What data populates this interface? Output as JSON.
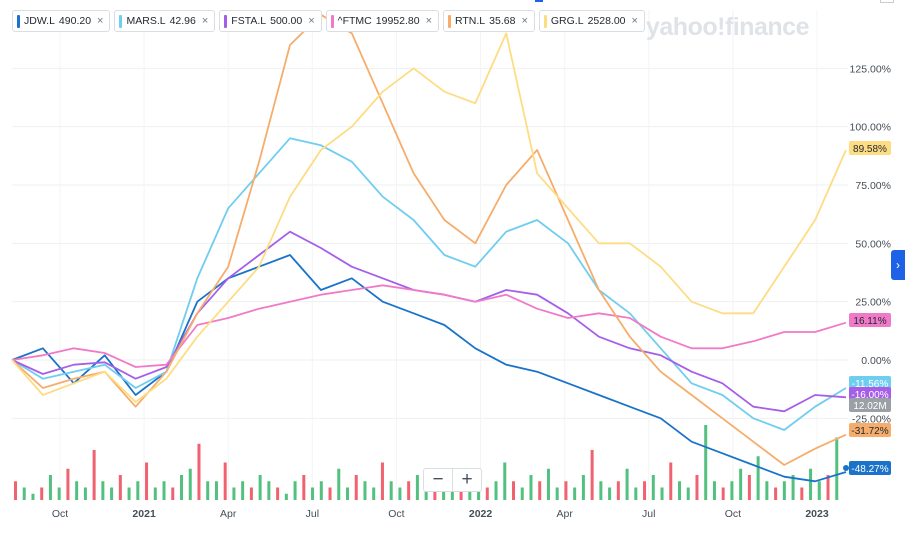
{
  "legend": [
    {
      "symbol": "JDW.L",
      "value": "490.20",
      "color": "#1a73c9"
    },
    {
      "symbol": "MARS.L",
      "value": "42.96",
      "color": "#6fcdf0"
    },
    {
      "symbol": "FSTA.L",
      "value": "500.00",
      "color": "#a65ee8"
    },
    {
      "symbol": "^FTMC",
      "value": "19952.80",
      "color": "#f07ac8"
    },
    {
      "symbol": "RTN.L",
      "value": "35.68",
      "color": "#f6ad6b"
    },
    {
      "symbol": "GRG.L",
      "value": "2528.00",
      "color": "#fddc82"
    }
  ],
  "watermark": "yahoo!finance",
  "zoom": {
    "minus": "−",
    "plus": "+"
  },
  "side_tab_icon": "chevron-right-icon",
  "chart_data": {
    "type": "line",
    "x_ticks": [
      "Oct",
      "2021",
      "Apr",
      "Jul",
      "Oct",
      "2022",
      "Apr",
      "Jul",
      "Oct",
      "2023"
    ],
    "y_ticks": [
      "125.00%",
      "100.00%",
      "75.00%",
      "50.00%",
      "25.00%",
      "0.00%",
      "-25.00%"
    ],
    "ylim": [
      -60,
      150
    ],
    "grid": true,
    "last_values": [
      {
        "label": "89.58%",
        "series": "GRG.L"
      },
      {
        "label": "16.11%",
        "series": "^FTMC"
      },
      {
        "label": "-11.56%",
        "series": "MARS.L"
      },
      {
        "label": "-16.00%",
        "series": "FSTA.L"
      },
      {
        "label": "12.02M",
        "series": "volume"
      },
      {
        "label": "-31.72%",
        "series": "RTN.L"
      },
      {
        "label": "-48.27%",
        "series": "JDW.L"
      }
    ],
    "series": [
      {
        "name": "JDW.L",
        "color": "#1a73c9",
        "values": [
          0,
          5,
          -10,
          2,
          -15,
          -5,
          25,
          35,
          40,
          45,
          30,
          35,
          25,
          20,
          15,
          5,
          -2,
          -5,
          -10,
          -15,
          -20,
          -25,
          -35,
          -40,
          -45,
          -50,
          -52,
          -48
        ]
      },
      {
        "name": "MARS.L",
        "color": "#6fcdf0",
        "values": [
          0,
          -8,
          -5,
          -2,
          -12,
          -5,
          35,
          65,
          80,
          95,
          92,
          85,
          70,
          60,
          45,
          40,
          55,
          60,
          50,
          30,
          20,
          5,
          -10,
          -15,
          -25,
          -30,
          -20,
          -12
        ]
      },
      {
        "name": "FSTA.L",
        "color": "#a65ee8",
        "values": [
          0,
          -6,
          -2,
          -1,
          -8,
          -3,
          20,
          35,
          45,
          55,
          48,
          40,
          35,
          30,
          28,
          25,
          30,
          28,
          20,
          10,
          5,
          2,
          -5,
          -10,
          -20,
          -22,
          -15,
          -16
        ]
      },
      {
        "name": "^FTMC",
        "color": "#f07ac8",
        "values": [
          0,
          2,
          5,
          3,
          -3,
          -2,
          15,
          18,
          22,
          25,
          28,
          30,
          32,
          30,
          28,
          25,
          28,
          22,
          18,
          20,
          18,
          10,
          5,
          5,
          8,
          12,
          12,
          16
        ]
      },
      {
        "name": "RTN.L",
        "color": "#f6ad6b",
        "values": [
          0,
          -12,
          -8,
          -5,
          -20,
          -5,
          20,
          40,
          85,
          135,
          148,
          140,
          110,
          80,
          60,
          50,
          75,
          90,
          60,
          30,
          10,
          -5,
          -15,
          -25,
          -35,
          -45,
          -38,
          -32
        ]
      },
      {
        "name": "GRG.L",
        "color": "#fddc82",
        "values": [
          0,
          -15,
          -10,
          -5,
          -18,
          -8,
          10,
          25,
          40,
          70,
          90,
          100,
          115,
          125,
          115,
          110,
          140,
          80,
          65,
          50,
          50,
          40,
          25,
          20,
          20,
          40,
          60,
          90
        ]
      }
    ],
    "volume": [
      3,
      2,
      1,
      2,
      4,
      2,
      5,
      3,
      2,
      8,
      3,
      2,
      4,
      2,
      3,
      6,
      2,
      3,
      2,
      4,
      5,
      9,
      3,
      3,
      6,
      2,
      3,
      2,
      4,
      3,
      2,
      1,
      3,
      4,
      2,
      3,
      2,
      5,
      2,
      4,
      3,
      2,
      6,
      3,
      2,
      3,
      4,
      5,
      3,
      2,
      4,
      2,
      3,
      5,
      2,
      3,
      6,
      3,
      2,
      4,
      3,
      5,
      2,
      3,
      2,
      4,
      8,
      3,
      2,
      3,
      5,
      2,
      3,
      4,
      2,
      6,
      3,
      2,
      4,
      12,
      3,
      2,
      3,
      5,
      4,
      7,
      3,
      2,
      3,
      4,
      2,
      5,
      3,
      4,
      10
    ]
  }
}
